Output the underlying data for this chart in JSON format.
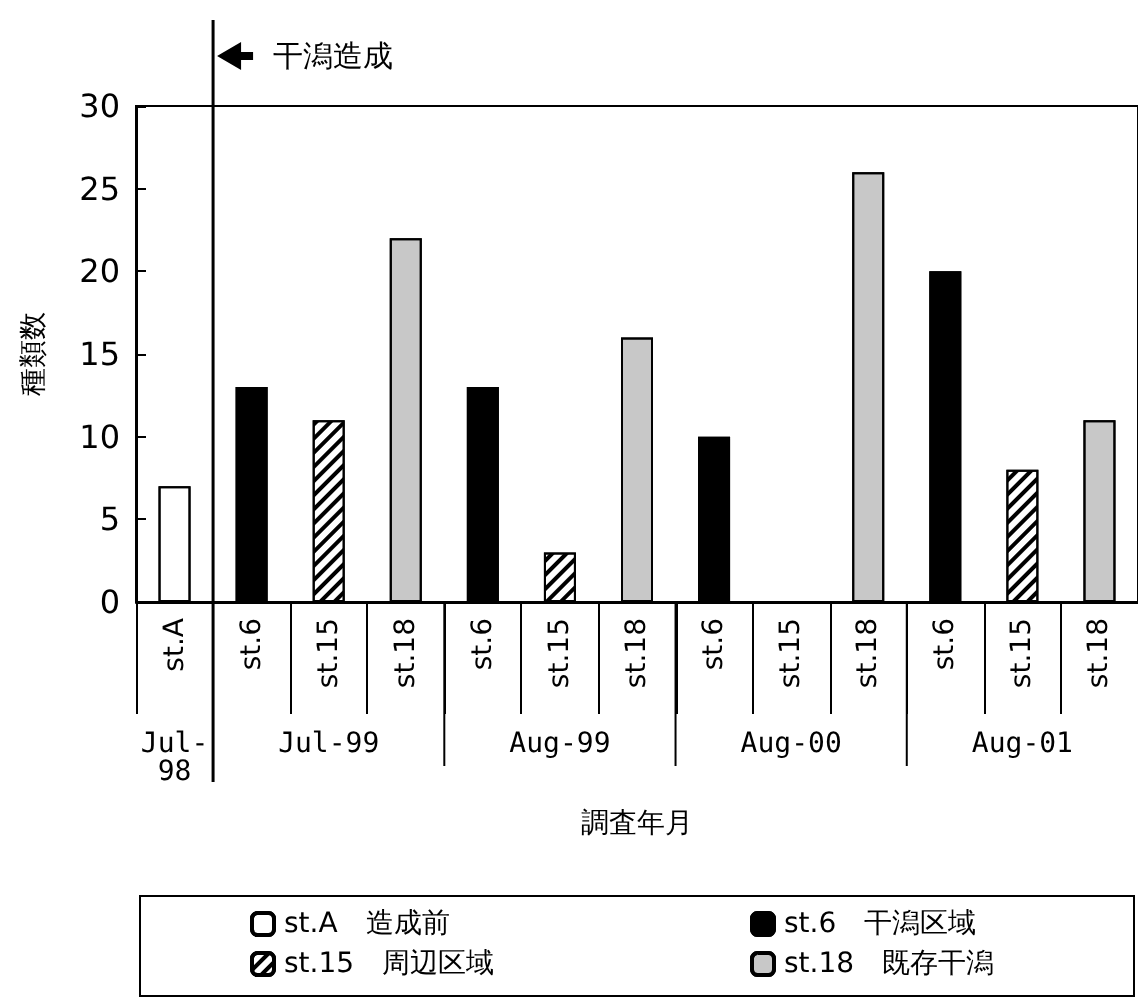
{
  "chart_data": {
    "type": "bar",
    "xlabel": "調査年月",
    "ylabel": "種類数",
    "categories": [
      "st.A",
      "st.6",
      "st.15",
      "st.18",
      "st.6",
      "st.15",
      "st.18",
      "st.6",
      "st.15",
      "st.18",
      "st.6",
      "st.15",
      "st.18"
    ],
    "series": [
      {
        "name": "st.A　造成前",
        "color": "#ffffff",
        "values": [
          7,
          null,
          null,
          null,
          null,
          null,
          null,
          null,
          null,
          null,
          null,
          null,
          null
        ]
      },
      {
        "name": "st.6　干潟区域",
        "color": "#000000",
        "values": [
          null,
          13,
          null,
          null,
          13,
          null,
          null,
          10,
          null,
          null,
          20,
          null,
          null
        ]
      },
      {
        "name": "st.15　周辺区域",
        "color": "#ffffff",
        "values": [
          null,
          null,
          11,
          null,
          null,
          3,
          null,
          null,
          null,
          null,
          null,
          8,
          null
        ]
      },
      {
        "name": "st.18　既存干潟",
        "color": "#c8c8c8",
        "values": [
          null,
          null,
          null,
          22,
          null,
          null,
          16,
          null,
          null,
          26,
          null,
          null,
          11
        ]
      }
    ],
    "annotations": [
      "干潟造成",
      "Jul-98",
      "Jul-99",
      "Aug-99",
      "Aug-00",
      "Aug-01"
    ],
    "ylim": [
      0,
      30
    ],
    "yticks": [
      0,
      5,
      10,
      15,
      20,
      25,
      30
    ],
    "grid": false,
    "legend": "bottom"
  }
}
